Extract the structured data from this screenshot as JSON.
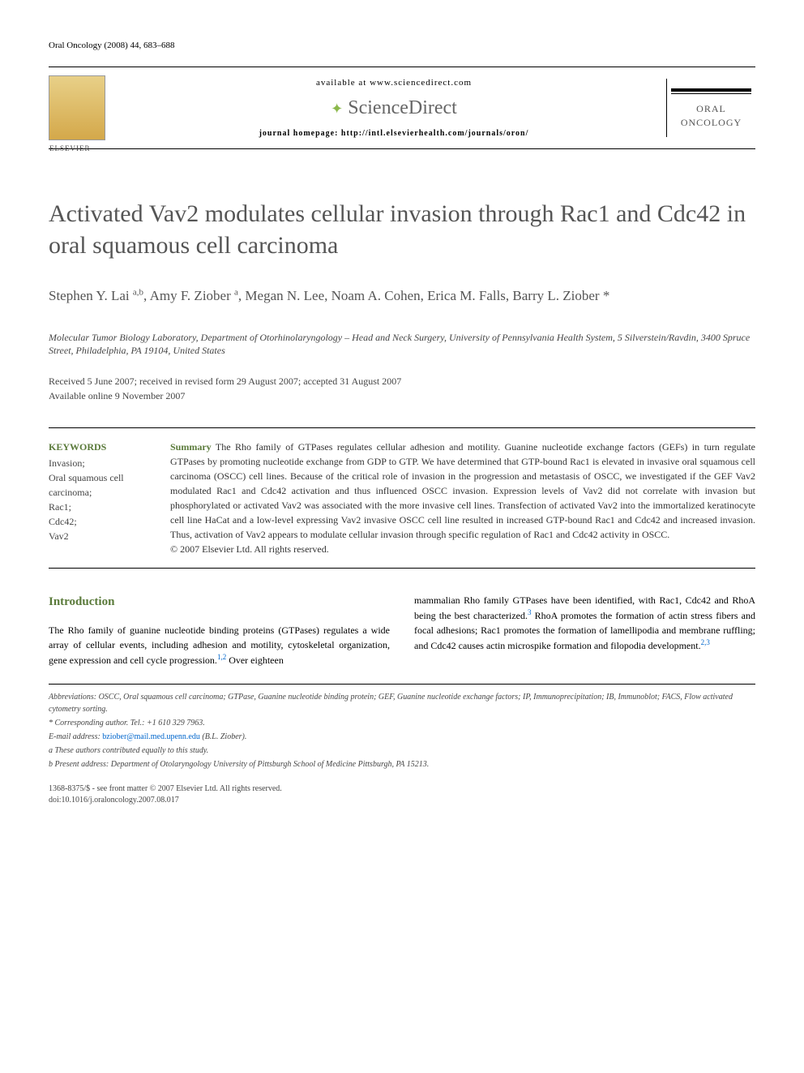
{
  "header": {
    "citation": "Oral Oncology (2008) 44, 683–688"
  },
  "banner": {
    "available": "available at www.sciencedirect.com",
    "sd_name": "ScienceDirect",
    "homepage": "journal homepage: http://intl.elsevierhealth.com/journals/oron/",
    "journal_name_1": "ORAL",
    "journal_name_2": "ONCOLOGY"
  },
  "title": "Activated Vav2 modulates cellular invasion through Rac1 and Cdc42 in oral squamous cell carcinoma",
  "authors": "Stephen Y. Lai a,b, Amy F. Ziober a, Megan N. Lee, Noam A. Cohen, Erica M. Falls, Barry L. Ziober *",
  "affiliation": "Molecular Tumor Biology Laboratory, Department of Otorhinolaryngology – Head and Neck Surgery, University of Pennsylvania Health System, 5 Silverstein/Ravdin, 3400 Spruce Street, Philadelphia, PA 19104, United States",
  "dates": {
    "received": "Received 5 June 2007; received in revised form 29 August 2007; accepted 31 August 2007",
    "online": "Available online 9 November 2007"
  },
  "keywords": {
    "title": "KEYWORDS",
    "items": "Invasion;\nOral squamous cell carcinoma;\nRac1;\nCdc42;\nVav2"
  },
  "summary": {
    "label": "Summary",
    "text": " The Rho family of GTPases regulates cellular adhesion and motility. Guanine nucleotide exchange factors (GEFs) in turn regulate GTPases by promoting nucleotide exchange from GDP to GTP. We have determined that GTP-bound Rac1 is elevated in invasive oral squamous cell carcinoma (OSCC) cell lines. Because of the critical role of invasion in the progression and metastasis of OSCC, we investigated if the GEF Vav2 modulated Rac1 and Cdc42 activation and thus influenced OSCC invasion. Expression levels of Vav2 did not correlate with invasion but phosphorylated or activated Vav2 was associated with the more invasive cell lines. Transfection of activated Vav2 into the immortalized keratinocyte cell line HaCat and a low-level expressing Vav2 invasive OSCC cell line resulted in increased GTP-bound Rac1 and Cdc42 and increased invasion. Thus, activation of Vav2 appears to modulate cellular invasion through specific regulation of Rac1 and Cdc42 activity in OSCC.",
    "copyright": "© 2007 Elsevier Ltd. All rights reserved."
  },
  "intro": {
    "heading": "Introduction",
    "col1": "The Rho family of guanine nucleotide binding proteins (GTPases) regulates a wide array of cellular events, including adhesion and motility, cytoskeletal organization, gene expression and cell cycle progression.1,2 Over eighteen",
    "col2": "mammalian Rho family GTPases have been identified, with Rac1, Cdc42 and RhoA being the best characterized.3 RhoA promotes the formation of actin stress fibers and focal adhesions; Rac1 promotes the formation of lamellipodia and membrane ruffling; and Cdc42 causes actin microspike formation and filopodia development.2,3"
  },
  "footnotes": {
    "abbrev": "Abbreviations: OSCC, Oral squamous cell carcinoma; GTPase, Guanine nucleotide binding protein; GEF, Guanine nucleotide exchange factors; IP, Immunoprecipitation; IB, Immunoblot; FACS, Flow activated cytometry sorting.",
    "corr": "* Corresponding author. Tel.: +1 610 329 7963.",
    "email_label": "E-mail address:",
    "email": "bziober@mail.med.upenn.edu",
    "email_suffix": " (B.L. Ziober).",
    "a": "a These authors contributed equally to this study.",
    "b": "b Present address: Department of Otolaryngology University of Pittsburgh School of Medicine Pittsburgh, PA 15213."
  },
  "footer": {
    "line1": "1368-8375/$ - see front matter © 2007 Elsevier Ltd. All rights reserved.",
    "line2": "doi:10.1016/j.oraloncology.2007.08.017"
  }
}
